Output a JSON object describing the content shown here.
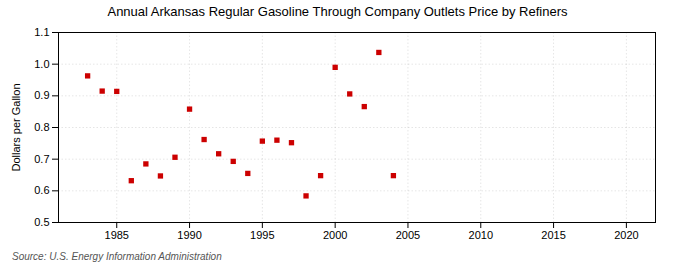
{
  "chart_data": {
    "type": "scatter",
    "title": "Annual Arkansas Regular Gasoline Through Company Outlets Price by Refiners",
    "ylabel": "Dollars per Gallon",
    "source": "Source: U.S. Energy Information Administration",
    "x": [
      1983,
      1984,
      1985,
      1986,
      1987,
      1988,
      1989,
      1990,
      1991,
      1992,
      1993,
      1994,
      1995,
      1996,
      1997,
      1998,
      1999,
      2000,
      2001,
      2002,
      2003,
      2004
    ],
    "values": [
      0.963,
      0.915,
      0.914,
      0.632,
      0.685,
      0.647,
      0.706,
      0.858,
      0.762,
      0.717,
      0.693,
      0.655,
      0.757,
      0.76,
      0.752,
      0.584,
      0.648,
      0.99,
      0.906,
      0.866,
      1.037,
      0.648
    ],
    "color": "#cc0000",
    "marker": "square",
    "xlim": [
      1981,
      2022
    ],
    "xticks": [
      1985,
      1990,
      1995,
      2000,
      2005,
      2010,
      2015,
      2020
    ],
    "ylim": [
      0.5,
      1.1
    ],
    "yticks": [
      0.5,
      0.6,
      0.7,
      0.8,
      0.9,
      {
        "value": 1.0,
        "label": "1.0"
      },
      1.1
    ],
    "grid": true
  }
}
